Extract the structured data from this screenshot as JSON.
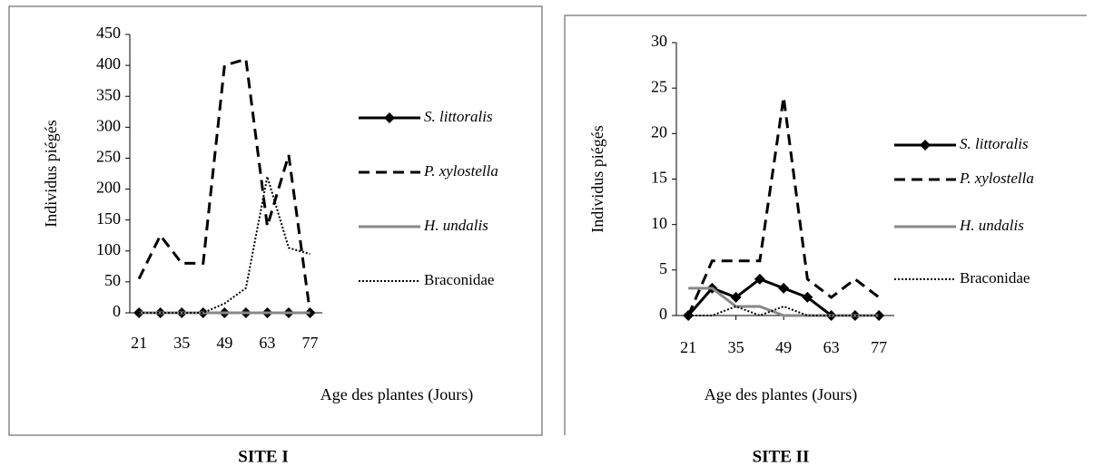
{
  "chart_data": [
    {
      "type": "line",
      "title": "SITE I",
      "x_label": "Age des plantes (Jours)",
      "y_label": "Individus piégés",
      "x": [
        21,
        28,
        35,
        42,
        49,
        56,
        63,
        70,
        77
      ],
      "xlim": [
        18,
        81
      ],
      "xticks": [
        21,
        35,
        49,
        63,
        77
      ],
      "ylim": [
        0,
        450
      ],
      "yticks": [
        0,
        50,
        100,
        150,
        200,
        250,
        300,
        350,
        400,
        450
      ],
      "series": [
        {
          "name": "S. littoralis",
          "color": "#000000",
          "style": "solid",
          "marker": "diamond",
          "values": [
            0,
            0,
            0,
            0,
            0,
            0,
            0,
            0,
            0
          ]
        },
        {
          "name": "P. xylostella",
          "color": "#000000",
          "style": "dashed",
          "values": [
            55,
            125,
            80,
            80,
            400,
            410,
            140,
            255,
            0
          ]
        },
        {
          "name": "H. undalis",
          "color": "#888888",
          "style": "solid",
          "values": [
            0,
            0,
            0,
            0,
            0,
            0,
            0,
            0,
            0
          ]
        },
        {
          "name": "Braconidae",
          "color": "#000000",
          "style": "dotted",
          "values": [
            0,
            0,
            0,
            0,
            15,
            40,
            220,
            105,
            95
          ]
        }
      ]
    },
    {
      "type": "line",
      "title": "SITE II",
      "x_label": "Age des plantes (Jours)",
      "y_label": "Individus piégés",
      "x": [
        21,
        28,
        35,
        42,
        49,
        56,
        63,
        70,
        77
      ],
      "xlim": [
        17.5,
        81.5
      ],
      "xticks": [
        21,
        35,
        49,
        63,
        77
      ],
      "ylim": [
        0,
        30
      ],
      "yticks": [
        0,
        5,
        10,
        15,
        20,
        25,
        30
      ],
      "series": [
        {
          "name": "S. littoralis",
          "color": "#000000",
          "style": "solid",
          "marker": "diamond",
          "values": [
            0,
            3,
            2,
            4,
            3,
            2,
            0,
            0,
            0
          ]
        },
        {
          "name": "P. xylostella",
          "color": "#000000",
          "style": "dashed",
          "values": [
            0,
            6,
            6,
            6,
            24,
            4,
            2,
            4,
            2
          ]
        },
        {
          "name": "H. undalis",
          "color": "#888888",
          "style": "solid",
          "values": [
            3,
            3,
            1,
            1,
            0,
            0,
            0,
            0,
            0
          ]
        },
        {
          "name": "Braconidae",
          "color": "#000000",
          "style": "dotted",
          "values": [
            0,
            0,
            1,
            0,
            1,
            0,
            0,
            0,
            0
          ]
        }
      ]
    }
  ]
}
